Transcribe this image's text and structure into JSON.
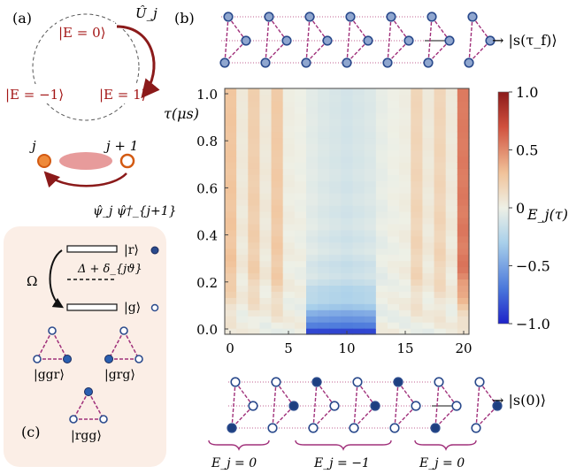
{
  "panel_a": {
    "label": "(a)",
    "states": {
      "e0": "|E = 0⟩",
      "em1": "|E = −1⟩",
      "e1": "|E = 1⟩"
    },
    "operator_u": "Û_j",
    "time_axis_label": "τ(μs)",
    "site_j": "j",
    "site_j1": "j + 1",
    "hopping": "ψ̂_j ψ̂†_{j+1}"
  },
  "panel_b": {
    "label": "(b)",
    "top_state": "→ |s(τ_f)⟩",
    "bottom_state": "→ |s(0)⟩",
    "colorbar_label": "E_j(τ)",
    "colorbar_ticks": [
      "1.0",
      "0.5",
      "0",
      "−0.5",
      "−1.0"
    ],
    "sector_labels": [
      "E_j = 0",
      "E_j = −1",
      "E_j = 0"
    ]
  },
  "panel_c": {
    "label": "(c)",
    "omega": "Ω",
    "rydberg": "|r⟩",
    "ground": "|g⟩",
    "detuning": "Δ + δ_{jϑ}",
    "configs": [
      "|ggr⟩",
      "|grg⟩",
      "|rgg⟩"
    ]
  },
  "chart_data": {
    "type": "heatmap",
    "xlabel": "",
    "ylabel": "τ(μs)",
    "x_ticks": [
      "0",
      "5",
      "10",
      "15",
      "20"
    ],
    "y_ticks": [
      "0.0",
      "0.2",
      "0.4",
      "0.6",
      "0.8",
      "1.0"
    ],
    "xlim": [
      0,
      20
    ],
    "ylim": [
      0,
      1.0
    ],
    "clim": [
      -1.0,
      1.0
    ],
    "colormap": "blue-white-red",
    "sites": [
      0,
      1,
      2,
      3,
      4,
      5,
      6,
      7,
      8,
      9,
      10,
      11,
      12,
      13,
      14,
      15,
      16,
      17,
      18,
      19,
      20
    ],
    "initial_profile": [
      0,
      0,
      0,
      0,
      0,
      0,
      0,
      -1,
      -1,
      -1,
      -1,
      -1,
      -1,
      0,
      0,
      0,
      0,
      0,
      0,
      0,
      0
    ],
    "late_profile": [
      0.28,
      0.05,
      0.22,
      0.05,
      0.25,
      0.02,
      0.0,
      -0.05,
      -0.08,
      -0.1,
      -0.12,
      -0.1,
      -0.08,
      -0.03,
      0.0,
      0.02,
      0.18,
      0.05,
      0.18,
      0.05,
      0.55
    ]
  },
  "colors": {
    "accent_red": "#a31515",
    "pink_bond": "#a0307a",
    "rydberg_blue": "#2a4a8c",
    "panel_c_bg": "#fbeee6"
  }
}
